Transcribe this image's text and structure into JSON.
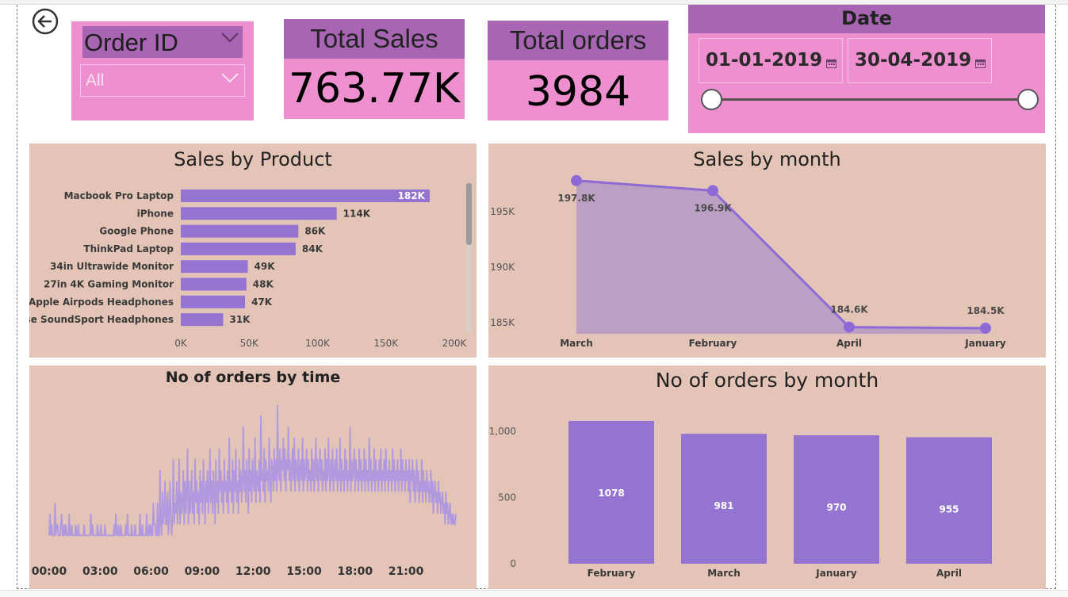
{
  "header": {
    "back_icon": "back-arrow-circle-icon"
  },
  "order_slicer": {
    "title": "Order ID",
    "value": "All"
  },
  "kpis": {
    "total_sales": {
      "label": "Total Sales",
      "value": "763.77K"
    },
    "total_orders": {
      "label": "Total orders",
      "value": "3984"
    }
  },
  "date_slicer": {
    "title": "Date",
    "start": "01-01-2019",
    "end": "30-04-2019",
    "range_fraction": [
      0,
      1
    ]
  },
  "colors": {
    "pink": "#ee90cf",
    "purple_header": "#a865b3",
    "panel_bg": "#e4c4b7",
    "bar": "#9474d0",
    "line": "#8e6ad6",
    "area": "#bca0c4",
    "time_line": "#b099de"
  },
  "charts": {
    "sales_by_product": {
      "title": "Sales by Product"
    },
    "sales_by_month": {
      "title": "Sales by month"
    },
    "orders_by_time": {
      "title": "No of orders by time"
    },
    "orders_by_month": {
      "title": "No of orders by month"
    }
  },
  "chart_data": [
    {
      "type": "bar",
      "orientation": "horizontal",
      "title": "Sales by Product",
      "categories": [
        "Macbook Pro Laptop",
        "iPhone",
        "Google Phone",
        "ThinkPad Laptop",
        "34in Ultrawide Monitor",
        "27in 4K Gaming Monitor",
        "Apple Airpods Headphones",
        "Bose SoundSport Headphones"
      ],
      "values": [
        182000,
        114000,
        86000,
        84000,
        49000,
        48000,
        47000,
        31000
      ],
      "data_labels": [
        "182K",
        "114K",
        "86K",
        "84K",
        "49K",
        "48K",
        "47K",
        "31K"
      ],
      "xticks": [
        "0K",
        "50K",
        "100K",
        "150K",
        "200K"
      ],
      "xlim": [
        0,
        200000
      ]
    },
    {
      "type": "area",
      "title": "Sales by month",
      "categories": [
        "March",
        "February",
        "April",
        "January"
      ],
      "values": [
        197800,
        196900,
        184600,
        184500
      ],
      "data_labels": [
        "197.8K",
        "196.9K",
        "184.6K",
        "184.5K"
      ],
      "yticks": [
        "195K",
        "190K",
        "185K"
      ],
      "ylim": [
        184000,
        198000
      ]
    },
    {
      "type": "line",
      "title": "No of orders by time",
      "xticks": [
        "00:00",
        "03:00",
        "06:00",
        "09:00",
        "12:00",
        "15:00",
        "18:00",
        "21:00"
      ],
      "x_range_hours": [
        0,
        24
      ],
      "y_range": [
        0,
        14
      ],
      "series": [
        {
          "values": [
            1,
            3,
            1,
            2,
            1,
            1,
            1,
            4,
            1,
            2,
            2,
            1,
            1,
            1,
            2,
            3,
            1,
            1,
            2,
            1,
            2,
            1,
            1,
            1,
            3,
            1,
            1,
            2,
            1,
            1,
            1,
            1,
            2,
            1,
            1,
            2,
            1,
            1,
            1,
            1,
            1,
            1,
            2,
            1,
            1,
            1,
            1,
            1,
            1,
            1,
            3,
            1,
            2,
            1,
            1,
            1,
            1,
            1,
            2,
            1,
            1,
            1,
            2,
            1,
            1,
            1,
            1,
            2,
            1,
            1,
            1,
            1,
            1,
            1,
            1,
            1,
            1,
            1,
            2,
            1,
            3,
            1,
            1,
            2,
            1,
            1,
            2,
            1,
            1,
            1,
            1,
            1,
            2,
            1,
            3,
            1,
            1,
            1,
            1,
            2,
            1,
            1,
            1,
            2,
            1,
            1,
            1,
            1,
            1,
            3,
            1,
            1,
            2,
            1,
            1,
            1,
            1,
            3,
            1,
            1,
            2,
            1,
            2,
            1,
            1,
            4,
            2,
            2,
            1,
            1,
            4,
            1,
            1,
            7,
            2,
            1,
            5,
            2,
            3,
            6,
            2,
            2,
            5,
            1,
            3,
            6,
            2,
            1,
            3,
            8,
            2,
            4,
            3,
            6,
            2,
            4,
            8,
            2,
            5,
            3,
            4,
            7,
            2,
            6,
            3,
            5,
            9,
            2,
            6,
            3,
            4,
            7,
            3,
            5,
            2,
            8,
            4,
            6,
            3,
            5,
            2,
            7,
            4,
            6,
            3,
            8,
            5,
            2,
            6,
            4,
            7,
            3,
            5,
            9,
            4,
            6,
            3,
            7,
            5,
            2,
            8,
            4,
            6,
            3,
            9,
            5,
            7,
            4,
            6,
            3,
            8,
            5,
            6,
            4,
            7,
            3,
            10,
            5,
            6,
            4,
            8,
            3,
            7,
            5,
            9,
            4,
            6,
            3,
            8,
            5,
            7,
            4,
            6,
            11,
            5,
            7,
            4,
            8,
            6,
            3,
            9,
            5,
            7,
            4,
            8,
            6,
            5,
            10,
            4,
            7,
            6,
            5,
            8,
            4,
            12,
            6,
            7,
            5,
            9,
            4,
            8,
            6,
            7,
            5,
            10,
            6,
            4,
            8,
            7,
            5,
            9,
            6,
            8,
            5,
            13,
            7,
            6,
            9,
            5,
            8,
            7,
            10,
            6,
            9,
            5,
            8,
            7,
            11,
            6,
            8,
            5,
            7,
            9,
            6,
            10,
            5,
            8,
            7,
            6,
            9,
            5,
            7,
            8,
            6,
            10,
            5,
            8,
            6,
            7,
            9,
            5,
            8,
            6,
            7,
            5,
            9,
            6,
            8,
            5,
            7,
            10,
            6,
            8,
            5,
            7,
            9,
            6,
            8,
            5,
            7,
            6,
            9,
            5,
            8,
            6,
            10,
            7,
            5,
            8,
            6,
            9,
            5,
            7,
            8,
            6,
            9,
            5,
            7,
            6,
            10,
            5,
            8,
            6,
            7,
            5,
            9,
            6,
            8,
            5,
            7,
            6,
            11,
            5,
            8,
            6,
            7,
            9,
            5,
            8,
            6,
            7,
            5,
            9,
            6,
            8,
            5,
            7,
            6,
            9,
            5,
            8,
            6,
            7,
            5,
            10,
            6,
            8,
            5,
            7,
            6,
            9,
            5,
            8,
            6,
            7,
            5,
            8,
            6,
            9,
            5,
            7,
            6,
            8,
            5,
            9,
            6,
            7,
            5,
            8,
            6,
            7,
            5,
            9,
            6,
            8,
            5,
            7,
            6,
            8,
            5,
            7,
            6,
            9,
            5,
            8,
            6,
            7,
            5,
            8,
            6,
            7,
            5,
            8,
            4,
            7,
            6,
            8,
            5,
            7,
            4,
            6,
            8,
            5,
            7,
            4,
            6,
            5,
            8,
            4,
            7,
            5,
            6,
            4,
            7,
            5,
            6,
            4,
            5,
            7,
            4,
            6,
            3,
            5,
            6,
            4,
            5,
            3,
            6,
            4,
            5,
            3,
            4,
            5,
            3,
            4,
            2,
            5,
            3,
            4,
            2,
            3,
            4,
            2,
            3,
            2,
            3,
            2,
            2,
            3
          ]
        }
      ]
    },
    {
      "type": "bar",
      "title": "No of orders by month",
      "categories": [
        "February",
        "March",
        "January",
        "April"
      ],
      "values": [
        1078,
        981,
        970,
        955
      ],
      "data_labels": [
        "1078",
        "981",
        "970",
        "955"
      ],
      "yticks": [
        "0",
        "500",
        "1,000"
      ],
      "ylim": [
        0,
        1200
      ]
    }
  ]
}
